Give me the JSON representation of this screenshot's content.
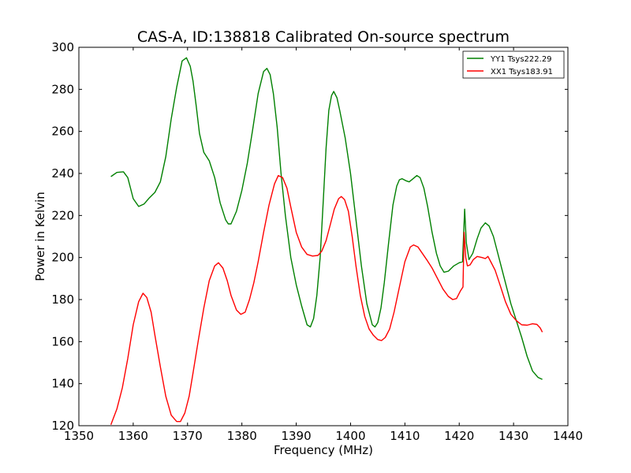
{
  "chart_data": {
    "type": "line",
    "title": "CAS-A, ID:138818 Calibrated On-source spectrum",
    "xlabel": "Frequency (MHz)",
    "ylabel": "Power in Kelvin",
    "xlim": [
      1350,
      1440
    ],
    "ylim": [
      120,
      300
    ],
    "xticks": [
      "1350",
      "1360",
      "1370",
      "1380",
      "1390",
      "1400",
      "1410",
      "1420",
      "1430",
      "1440"
    ],
    "yticks": [
      "120",
      "140",
      "160",
      "180",
      "200",
      "220",
      "240",
      "260",
      "280",
      "300"
    ],
    "grid": false,
    "legend_position": "top-right",
    "series": [
      {
        "name": "YY1 Tsys222.29",
        "color": "#008000",
        "points": [
          [
            1355.9,
            238.5
          ],
          [
            1357,
            240.5
          ],
          [
            1358.2,
            240.8
          ],
          [
            1359,
            238
          ],
          [
            1360,
            228
          ],
          [
            1361,
            224.3
          ],
          [
            1362,
            225.5
          ],
          [
            1363,
            228.5
          ],
          [
            1364,
            231
          ],
          [
            1365,
            236
          ],
          [
            1366,
            248
          ],
          [
            1367,
            266
          ],
          [
            1368,
            281
          ],
          [
            1369,
            293.5
          ],
          [
            1369.8,
            295
          ],
          [
            1370.5,
            291
          ],
          [
            1371,
            284
          ],
          [
            1371.6,
            272
          ],
          [
            1372.2,
            259
          ],
          [
            1373,
            250
          ],
          [
            1374,
            246
          ],
          [
            1375,
            238
          ],
          [
            1376,
            226
          ],
          [
            1377,
            218
          ],
          [
            1377.5,
            216
          ],
          [
            1378,
            216
          ],
          [
            1379,
            222
          ],
          [
            1380,
            232
          ],
          [
            1381,
            245
          ],
          [
            1382,
            261
          ],
          [
            1383,
            278
          ],
          [
            1384,
            288.5
          ],
          [
            1384.6,
            290
          ],
          [
            1385.2,
            287
          ],
          [
            1385.8,
            278
          ],
          [
            1386.5,
            262
          ],
          [
            1387.2,
            240
          ],
          [
            1388,
            220
          ],
          [
            1389,
            200
          ],
          [
            1390,
            187
          ],
          [
            1391,
            177
          ],
          [
            1392,
            168
          ],
          [
            1392.6,
            167
          ],
          [
            1393.2,
            171
          ],
          [
            1393.8,
            182
          ],
          [
            1394.4,
            200
          ],
          [
            1395,
            228
          ],
          [
            1395.5,
            252
          ],
          [
            1396,
            270
          ],
          [
            1396.5,
            277
          ],
          [
            1396.9,
            279
          ],
          [
            1397.5,
            276
          ],
          [
            1398,
            270
          ],
          [
            1399,
            257
          ],
          [
            1400,
            240
          ],
          [
            1401,
            218
          ],
          [
            1402,
            196
          ],
          [
            1403,
            178
          ],
          [
            1404,
            168
          ],
          [
            1404.5,
            167
          ],
          [
            1405,
            169
          ],
          [
            1405.6,
            176
          ],
          [
            1406.2,
            188
          ],
          [
            1407,
            207
          ],
          [
            1407.8,
            225
          ],
          [
            1408.5,
            234
          ],
          [
            1409,
            237
          ],
          [
            1409.5,
            237.5
          ],
          [
            1410.2,
            236.5
          ],
          [
            1410.8,
            236
          ],
          [
            1411.5,
            237.5
          ],
          [
            1412.2,
            239
          ],
          [
            1412.8,
            238
          ],
          [
            1413.5,
            233
          ],
          [
            1414.2,
            224
          ],
          [
            1415,
            212
          ],
          [
            1415.8,
            202
          ],
          [
            1416.5,
            196
          ],
          [
            1417.2,
            193
          ],
          [
            1418,
            193.5
          ],
          [
            1419,
            196
          ],
          [
            1420,
            197.5
          ],
          [
            1420.6,
            198
          ],
          [
            1421,
            223
          ],
          [
            1421.3,
            207
          ],
          [
            1421.8,
            199
          ],
          [
            1422.5,
            202
          ],
          [
            1423.3,
            209
          ],
          [
            1424,
            214
          ],
          [
            1424.8,
            216.5
          ],
          [
            1425.5,
            215
          ],
          [
            1426.3,
            210
          ],
          [
            1427.3,
            200
          ],
          [
            1428.5,
            188
          ],
          [
            1429.5,
            178
          ],
          [
            1430.5,
            170
          ],
          [
            1431.5,
            162
          ],
          [
            1432.5,
            153
          ],
          [
            1433.5,
            146
          ],
          [
            1434.5,
            143
          ],
          [
            1435.3,
            142
          ]
        ]
      },
      {
        "name": "XX1 Tsys183.91",
        "color": "#ff0000",
        "points": [
          [
            1355.9,
            120.5
          ],
          [
            1357,
            128
          ],
          [
            1358,
            138
          ],
          [
            1359,
            152
          ],
          [
            1360,
            168
          ],
          [
            1361,
            179
          ],
          [
            1361.8,
            183
          ],
          [
            1362.5,
            181
          ],
          [
            1363.3,
            174
          ],
          [
            1364,
            163
          ],
          [
            1365,
            148
          ],
          [
            1366,
            134
          ],
          [
            1367,
            125
          ],
          [
            1368,
            122
          ],
          [
            1368.7,
            122
          ],
          [
            1369.5,
            126
          ],
          [
            1370.3,
            134
          ],
          [
            1371,
            145
          ],
          [
            1372,
            161
          ],
          [
            1373,
            176
          ],
          [
            1374,
            189
          ],
          [
            1375,
            196
          ],
          [
            1375.7,
            197.5
          ],
          [
            1376.5,
            195
          ],
          [
            1377.3,
            189
          ],
          [
            1378,
            182
          ],
          [
            1379,
            175
          ],
          [
            1379.8,
            173
          ],
          [
            1380.6,
            174
          ],
          [
            1381.4,
            180
          ],
          [
            1382.2,
            188
          ],
          [
            1383,
            198
          ],
          [
            1384,
            212
          ],
          [
            1385,
            225
          ],
          [
            1386,
            235
          ],
          [
            1386.7,
            239
          ],
          [
            1387.5,
            238
          ],
          [
            1388.3,
            233
          ],
          [
            1389,
            224
          ],
          [
            1390,
            212
          ],
          [
            1391,
            205
          ],
          [
            1392,
            201.5
          ],
          [
            1393,
            200.7
          ],
          [
            1394,
            201
          ],
          [
            1394.7,
            203
          ],
          [
            1395.5,
            208
          ],
          [
            1396.3,
            216
          ],
          [
            1397,
            223
          ],
          [
            1397.8,
            228
          ],
          [
            1398.3,
            229
          ],
          [
            1398.9,
            227.5
          ],
          [
            1399.6,
            222
          ],
          [
            1400.3,
            210
          ],
          [
            1401,
            196
          ],
          [
            1401.8,
            182
          ],
          [
            1402.6,
            172
          ],
          [
            1403.4,
            166
          ],
          [
            1404.2,
            163
          ],
          [
            1405,
            161
          ],
          [
            1405.7,
            160.5
          ],
          [
            1406.4,
            162
          ],
          [
            1407.2,
            166
          ],
          [
            1408,
            174
          ],
          [
            1409,
            186
          ],
          [
            1410,
            198
          ],
          [
            1411,
            205
          ],
          [
            1411.6,
            206
          ],
          [
            1412.4,
            205
          ],
          [
            1413.2,
            202
          ],
          [
            1414,
            199
          ],
          [
            1415,
            195
          ],
          [
            1416,
            190
          ],
          [
            1417,
            185
          ],
          [
            1418,
            181.5
          ],
          [
            1418.8,
            180
          ],
          [
            1419.5,
            180.5
          ],
          [
            1420.2,
            184
          ],
          [
            1420.7,
            186
          ],
          [
            1420.9,
            212
          ],
          [
            1421.2,
            200
          ],
          [
            1421.5,
            196
          ],
          [
            1422,
            196.5
          ],
          [
            1422.6,
            199
          ],
          [
            1423.3,
            200.5
          ],
          [
            1424.2,
            200
          ],
          [
            1424.8,
            199.5
          ],
          [
            1425.3,
            200.5
          ],
          [
            1425.8,
            198
          ],
          [
            1426.6,
            194
          ],
          [
            1427.5,
            187
          ],
          [
            1428.5,
            179
          ],
          [
            1429.5,
            173
          ],
          [
            1430.5,
            170
          ],
          [
            1431.5,
            168
          ],
          [
            1432.5,
            167.8
          ],
          [
            1433.5,
            168.5
          ],
          [
            1434.3,
            168.2
          ],
          [
            1434.9,
            166.5
          ],
          [
            1435.3,
            164.5
          ]
        ]
      }
    ]
  }
}
